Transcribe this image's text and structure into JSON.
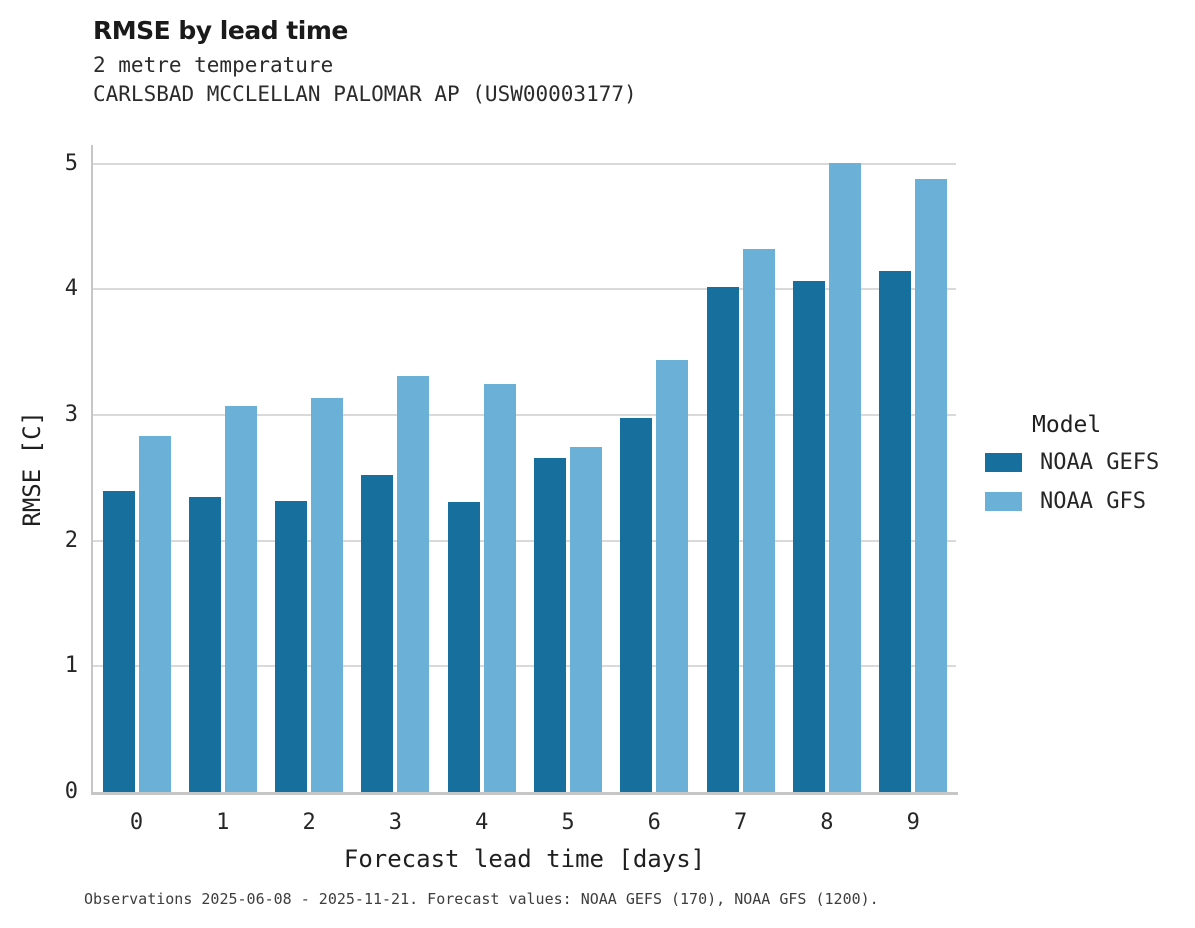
{
  "header": {
    "title": "RMSE by lead time",
    "subtitle1": "2 metre temperature",
    "subtitle2": "CARLSBAD MCCLELLAN PALOMAR AP (USW00003177)"
  },
  "chart_data": {
    "type": "bar",
    "title": "RMSE by lead time",
    "subtitle": [
      "2 metre temperature",
      "CARLSBAD MCCLELLAN PALOMAR AP (USW00003177)"
    ],
    "categories": [
      "0",
      "1",
      "2",
      "3",
      "4",
      "5",
      "6",
      "7",
      "8",
      "9"
    ],
    "series": [
      {
        "name": "NOAA GEFS",
        "color": "#176f9e",
        "values": [
          2.4,
          2.35,
          2.32,
          2.52,
          2.31,
          2.66,
          2.98,
          4.02,
          4.07,
          4.15
        ]
      },
      {
        "name": "NOAA GFS",
        "color": "#6bb0d6",
        "values": [
          2.83,
          3.07,
          3.14,
          3.31,
          3.25,
          2.75,
          3.44,
          4.32,
          5.01,
          4.88
        ]
      }
    ],
    "xlabel": "Forecast lead time [days]",
    "ylabel": "RMSE [C]",
    "ylim": [
      0,
      5.15
    ],
    "yticks": [
      0,
      1,
      2,
      3,
      4,
      5
    ],
    "grid": true,
    "legend_title": "Model",
    "legend_position": "right"
  },
  "legend": {
    "title": "Model",
    "items": [
      {
        "label": "NOAA GEFS",
        "color": "#176f9e"
      },
      {
        "label": "NOAA GFS",
        "color": "#6bb0d6"
      }
    ]
  },
  "caption": "Observations 2025-06-08 - 2025-11-21. Forecast values: NOAA GEFS (170), NOAA GFS (1200).",
  "colors": {
    "gridline": "#d9d9d9",
    "spine": "#c6c6c6",
    "text": "#262626"
  }
}
